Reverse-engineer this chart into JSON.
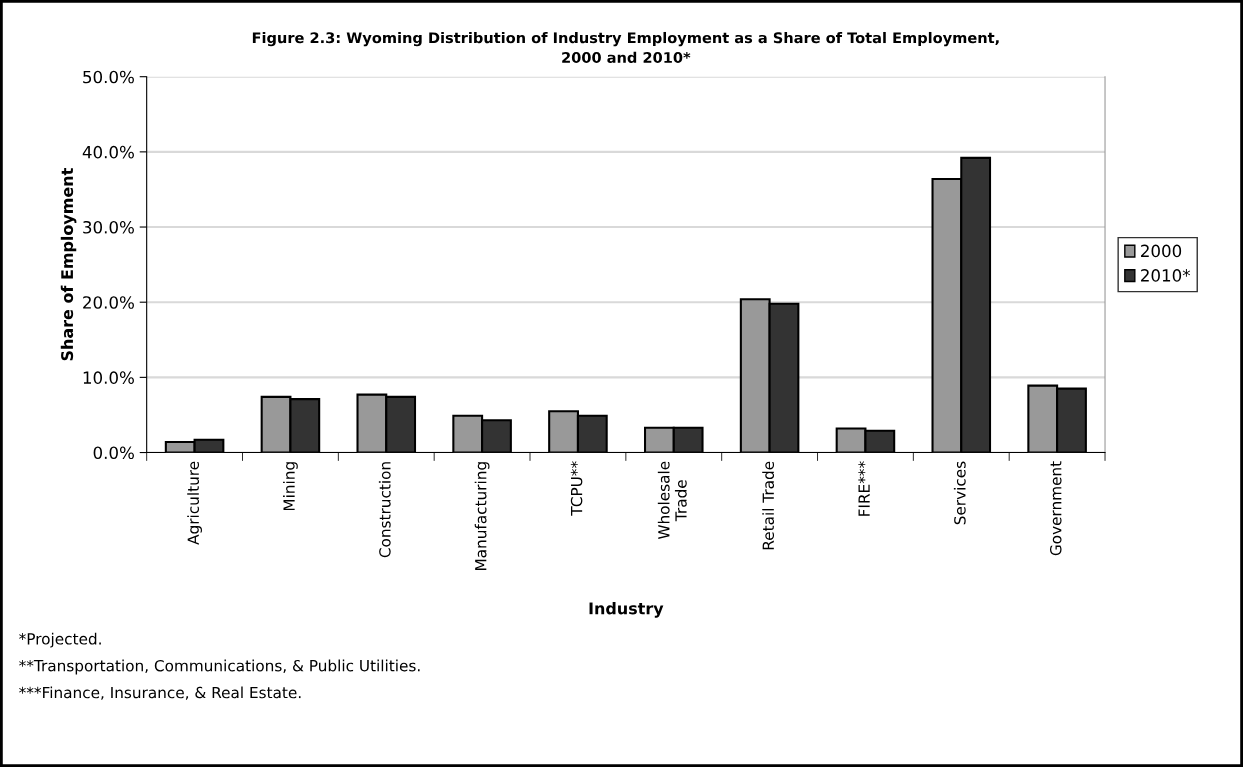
{
  "chart_data": {
    "type": "bar",
    "title": "Figure 2.3: Wyoming Distribution of Industry Employment as a Share of Total Employment,\n2000 and 2010*",
    "xlabel": "Industry",
    "ylabel": "Share of Employment",
    "categories": [
      "Agriculture",
      "Mining",
      "Construction",
      "Manufacturing",
      "TCPU**",
      "Wholesale\nTrade",
      "Retail Trade",
      "FIRE***",
      "Services",
      "Government"
    ],
    "series": [
      {
        "name": "2000",
        "color": "#999999",
        "values": [
          1.4,
          7.4,
          7.7,
          4.9,
          5.5,
          3.3,
          20.4,
          3.2,
          36.4,
          8.9
        ]
      },
      {
        "name": "2010*",
        "color": "#333333",
        "values": [
          1.7,
          7.1,
          7.4,
          4.3,
          4.9,
          3.3,
          19.8,
          2.9,
          39.2,
          8.5
        ]
      }
    ],
    "ylim": [
      0,
      50
    ],
    "yticks": [
      {
        "value": 0,
        "label": "0.0%"
      },
      {
        "value": 10,
        "label": "10.0%"
      },
      {
        "value": 20,
        "label": "20.0%"
      },
      {
        "value": 30,
        "label": "30.0%"
      },
      {
        "value": 40,
        "label": "40.0%"
      },
      {
        "value": 50,
        "label": "50.0%"
      }
    ],
    "grid": "y",
    "legend": "right",
    "annotations": [
      "*Projected.",
      "**Transportation, Communications, & Public Utilities.",
      "***Finance, Insurance, & Real Estate."
    ]
  }
}
